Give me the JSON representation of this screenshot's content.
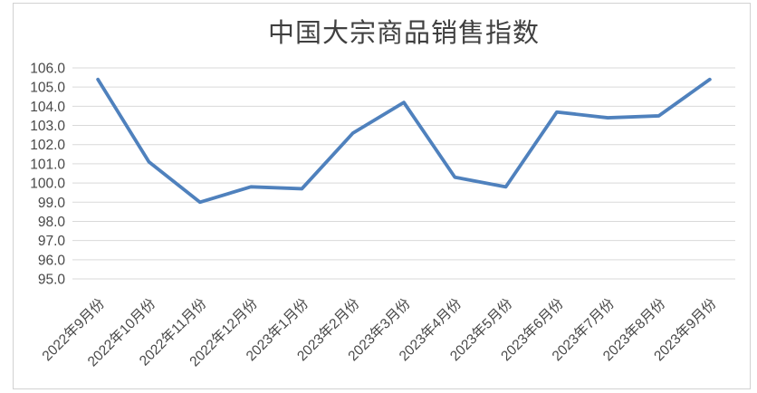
{
  "chart_data": {
    "type": "line",
    "title": "中国大宗商品销售指数",
    "categories": [
      "2022年9月份",
      "2022年10月份",
      "2022年11月份",
      "2022年12月份",
      "2023年1月份",
      "2023年2月份",
      "2023年3月份",
      "2023年4月份",
      "2023年5月份",
      "2023年6月份",
      "2023年7月份",
      "2023年8月份",
      "2023年9月份"
    ],
    "values": [
      105.4,
      101.1,
      99.0,
      99.8,
      99.7,
      102.6,
      104.2,
      100.3,
      99.8,
      103.7,
      103.4,
      103.5,
      105.4
    ],
    "xlabel": "",
    "ylabel": "",
    "ylim": [
      95.0,
      106.0
    ],
    "ytick_step": 1.0,
    "ytick_format": "#0.0",
    "x_label_rotation": -45,
    "grid": "horizontal",
    "legend": "none",
    "line_color": "#4F81BD",
    "gridline_color": "#D9D9D9",
    "frame_color": "#D2D2D2",
    "title_color": "#404040",
    "tick_label_color": "#484848"
  }
}
